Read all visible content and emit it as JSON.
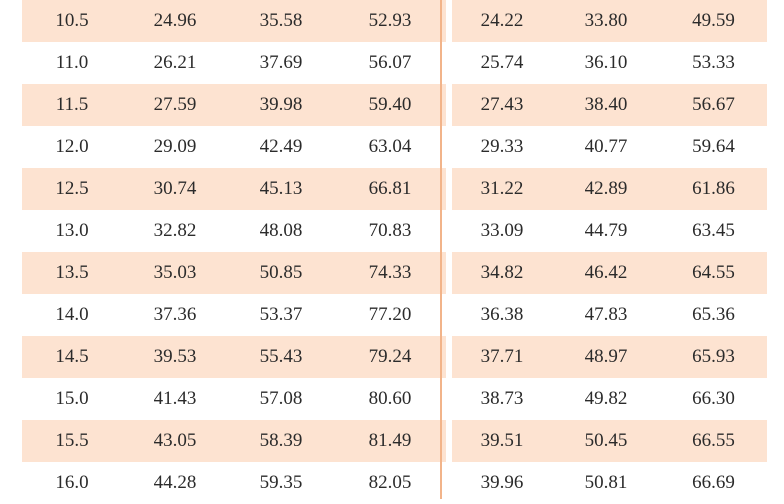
{
  "rows": [
    [
      "10.5",
      "24.96",
      "35.58",
      "52.93",
      "24.22",
      "33.80",
      "49.59"
    ],
    [
      "11.0",
      "26.21",
      "37.69",
      "56.07",
      "25.74",
      "36.10",
      "53.33"
    ],
    [
      "11.5",
      "27.59",
      "39.98",
      "59.40",
      "27.43",
      "38.40",
      "56.67"
    ],
    [
      "12.0",
      "29.09",
      "42.49",
      "63.04",
      "29.33",
      "40.77",
      "59.64"
    ],
    [
      "12.5",
      "30.74",
      "45.13",
      "66.81",
      "31.22",
      "42.89",
      "61.86"
    ],
    [
      "13.0",
      "32.82",
      "48.08",
      "70.83",
      "33.09",
      "44.79",
      "63.45"
    ],
    [
      "13.5",
      "35.03",
      "50.85",
      "74.33",
      "34.82",
      "46.42",
      "64.55"
    ],
    [
      "14.0",
      "37.36",
      "53.37",
      "77.20",
      "36.38",
      "47.83",
      "65.36"
    ],
    [
      "14.5",
      "39.53",
      "55.43",
      "79.24",
      "37.71",
      "48.97",
      "65.93"
    ],
    [
      "15.0",
      "41.43",
      "57.08",
      "80.60",
      "38.73",
      "49.82",
      "66.30"
    ],
    [
      "15.5",
      "43.05",
      "58.39",
      "81.49",
      "39.51",
      "50.45",
      "66.55"
    ],
    [
      "16.0",
      "44.28",
      "59.35",
      "82.05",
      "39.96",
      "50.81",
      "66.69"
    ]
  ],
  "colors": {
    "row_shade": "#fde3d1",
    "divider": "#f2b48a",
    "text": "#2b2b2b"
  }
}
